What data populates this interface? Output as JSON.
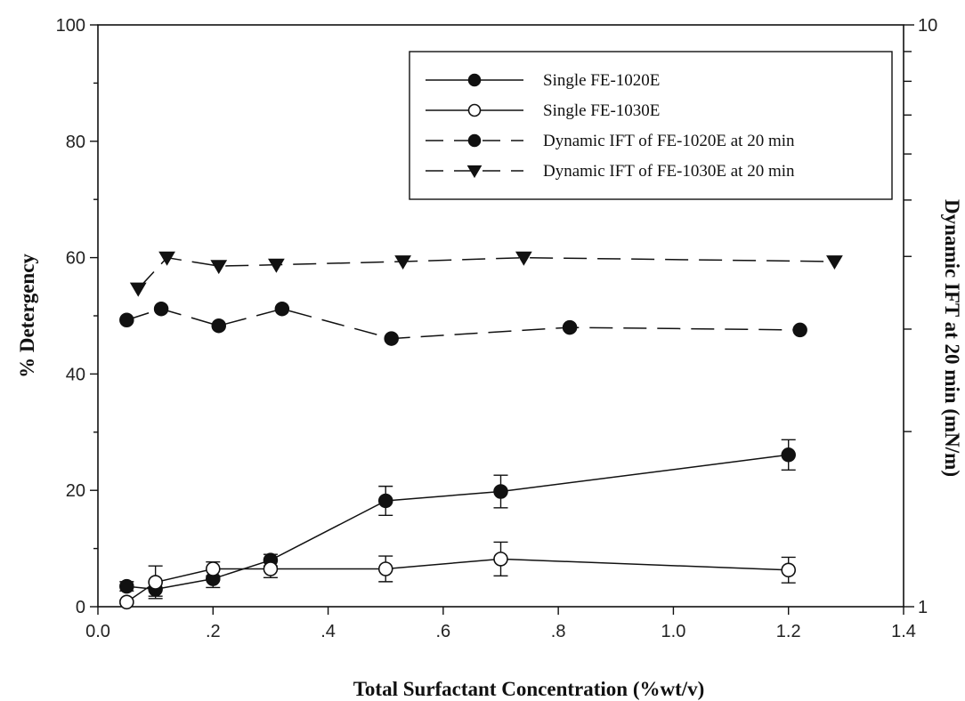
{
  "chart_data": {
    "type": "line",
    "xlabel": "Total Surfactant Concentration (%wt/v)",
    "ylabel": "% Detergency",
    "y2label": "Dynamic IFT at 20 min (mN/m)",
    "xlim": [
      0.0,
      1.4
    ],
    "ylim": [
      0,
      100
    ],
    "y2lim": [
      1,
      10
    ],
    "y2scale": "log",
    "legend_position": "top-right",
    "grid": false,
    "x_ticks": [
      {
        "value": 0.0,
        "label": "0.0"
      },
      {
        "value": 0.2,
        "label": ".2"
      },
      {
        "value": 0.4,
        "label": ".4"
      },
      {
        "value": 0.6,
        "label": ".6"
      },
      {
        "value": 0.8,
        "label": ".8"
      },
      {
        "value": 1.0,
        "label": "1.0"
      },
      {
        "value": 1.2,
        "label": "1.2"
      },
      {
        "value": 1.4,
        "label": "1.4"
      }
    ],
    "y_ticks": [
      {
        "value": 0,
        "label": "0"
      },
      {
        "value": 20,
        "label": "20"
      },
      {
        "value": 40,
        "label": "40"
      },
      {
        "value": 60,
        "label": "60"
      },
      {
        "value": 80,
        "label": "80"
      },
      {
        "value": 100,
        "label": "100"
      }
    ],
    "y2_ticks": [
      {
        "value": 1,
        "label": "1"
      },
      {
        "value": 10,
        "label": "10"
      }
    ],
    "series": [
      {
        "name": "Single FE-1020E",
        "axis": "left",
        "marker": "circle-filled",
        "line": "solid",
        "x": [
          0.05,
          0.1,
          0.2,
          0.3,
          0.5,
          0.7,
          1.2
        ],
        "y": [
          3.5,
          3.0,
          4.8,
          8.0,
          18.2,
          19.8,
          26.1
        ],
        "error": [
          0.8,
          1.2,
          1.5,
          1.0,
          2.5,
          2.8,
          2.6
        ]
      },
      {
        "name": "Single FE-1030E",
        "axis": "left",
        "marker": "circle-open",
        "line": "solid",
        "x": [
          0.05,
          0.1,
          0.2,
          0.3,
          0.5,
          0.7,
          1.2
        ],
        "y": [
          0.8,
          4.2,
          6.5,
          6.5,
          6.5,
          8.2,
          6.3
        ],
        "error": [
          0.3,
          2.8,
          1.2,
          1.5,
          2.2,
          2.9,
          2.2
        ]
      },
      {
        "name": "Dynamic IFT of FE-1020E at 20 min",
        "axis": "right",
        "marker": "circle-filled",
        "line": "dashed",
        "x": [
          0.05,
          0.11,
          0.21,
          0.32,
          0.51,
          0.82,
          1.22
        ],
        "y": [
          3.11,
          3.25,
          3.04,
          3.25,
          2.89,
          3.02,
          2.99
        ]
      },
      {
        "name": "Dynamic IFT of FE-1030E at 20 min",
        "axis": "right",
        "marker": "triangle-down",
        "line": "dashed",
        "x": [
          0.07,
          0.12,
          0.21,
          0.31,
          0.53,
          0.74,
          1.28
        ],
        "y": [
          3.52,
          3.98,
          3.85,
          3.87,
          3.92,
          3.98,
          3.92
        ]
      }
    ]
  }
}
